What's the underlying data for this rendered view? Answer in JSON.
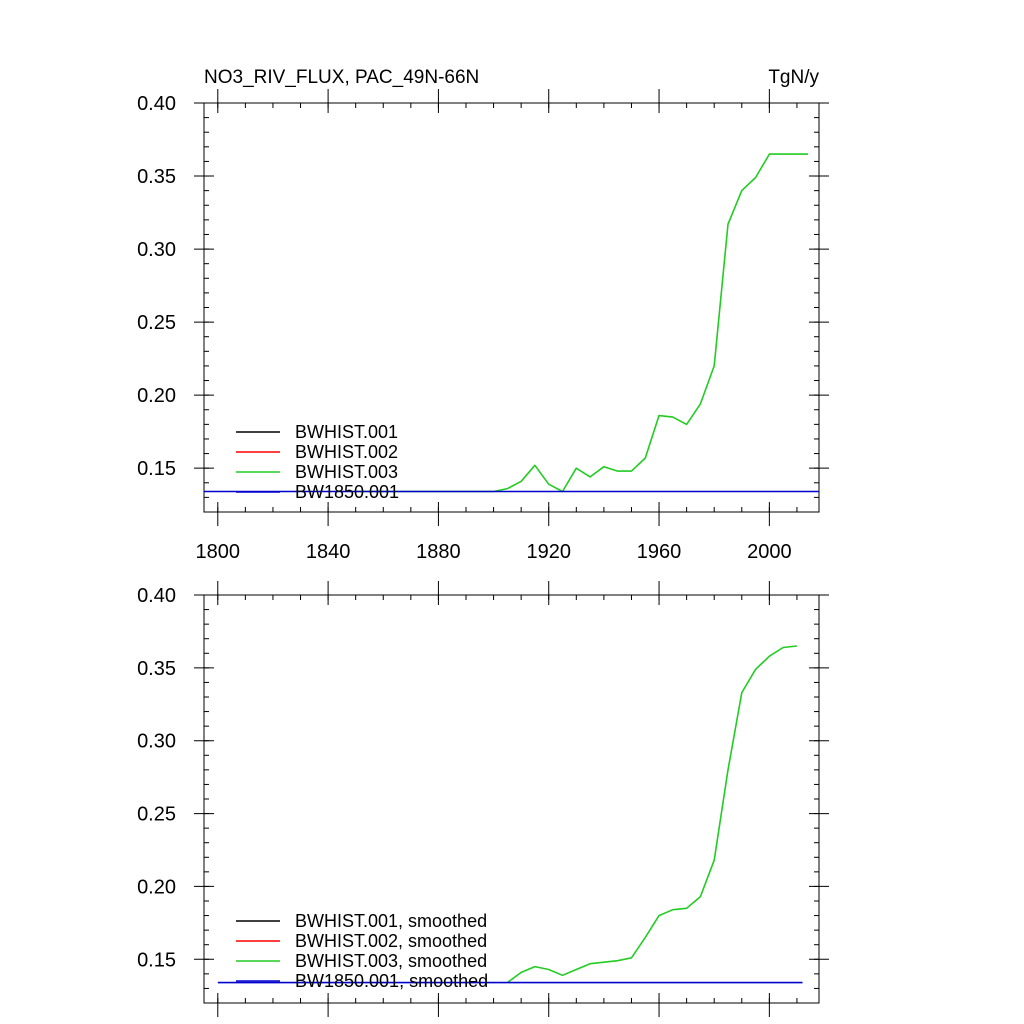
{
  "figure": {
    "title_left": "NO3_RIV_FLUX, PAC_49N-66N",
    "title_right": "TgN/y"
  },
  "chart_data": [
    {
      "type": "line",
      "xlim": [
        1795,
        2018
      ],
      "ylim": [
        0.12,
        0.4
      ],
      "xticks": [
        1800,
        1840,
        1880,
        1920,
        1960,
        2000
      ],
      "xtick_labels": [
        "1800",
        "1840",
        "1880",
        "1920",
        "1960",
        "2000"
      ],
      "yticks": [
        0.15,
        0.2,
        0.25,
        0.3,
        0.35,
        0.4
      ],
      "ytick_labels": [
        "0.15",
        "0.20",
        "0.25",
        "0.30",
        "0.35",
        "0.40"
      ],
      "grid": false,
      "legend_position": "bottom-left",
      "series": [
        {
          "name": "BWHIST.001",
          "color": "#000000",
          "x": [],
          "y": []
        },
        {
          "name": "BWHIST.002",
          "color": "#ff0000",
          "x": [],
          "y": []
        },
        {
          "name": "BWHIST.003",
          "color": "#22cc22",
          "x": [
            1850,
            1900,
            1905,
            1910,
            1915,
            1920,
            1925,
            1930,
            1935,
            1940,
            1945,
            1950,
            1955,
            1960,
            1965,
            1970,
            1975,
            1980,
            1985,
            1990,
            1995,
            2000,
            2005,
            2010,
            2014
          ],
          "y": [
            0.134,
            0.134,
            0.136,
            0.141,
            0.152,
            0.139,
            0.134,
            0.15,
            0.144,
            0.151,
            0.148,
            0.148,
            0.157,
            0.186,
            0.185,
            0.18,
            0.194,
            0.22,
            0.317,
            0.34,
            0.349,
            0.365,
            0.365,
            0.365,
            0.365
          ]
        },
        {
          "name": "BW1850.001",
          "color": "#0000cc",
          "x": [
            1795,
            2018
          ],
          "y": [
            0.134,
            0.134
          ]
        }
      ]
    },
    {
      "type": "line",
      "xlim": [
        1795,
        2018
      ],
      "ylim": [
        0.12,
        0.4
      ],
      "xticks": [
        1800,
        1840,
        1880,
        1920,
        1960,
        2000
      ],
      "xtick_labels": [],
      "yticks": [
        0.15,
        0.2,
        0.25,
        0.3,
        0.35,
        0.4
      ],
      "ytick_labels": [
        "0.15",
        "0.20",
        "0.25",
        "0.30",
        "0.35",
        "0.40"
      ],
      "grid": false,
      "legend_position": "bottom-left",
      "series": [
        {
          "name": "BWHIST.001, smoothed",
          "color": "#000000",
          "x": [],
          "y": []
        },
        {
          "name": "BWHIST.002, smoothed",
          "color": "#ff0000",
          "x": [],
          "y": []
        },
        {
          "name": "BWHIST.003, smoothed",
          "color": "#22cc22",
          "x": [
            1905,
            1910,
            1915,
            1920,
            1925,
            1930,
            1935,
            1940,
            1945,
            1950,
            1955,
            1960,
            1965,
            1970,
            1975,
            1980,
            1985,
            1990,
            1995,
            2000,
            2005,
            2010
          ],
          "y": [
            0.134,
            0.141,
            0.145,
            0.143,
            0.139,
            0.143,
            0.147,
            0.148,
            0.149,
            0.151,
            0.165,
            0.18,
            0.184,
            0.185,
            0.193,
            0.218,
            0.28,
            0.333,
            0.349,
            0.358,
            0.364,
            0.365
          ]
        },
        {
          "name": "BW1850.001, smoothed",
          "color": "#0000cc",
          "x": [
            1800,
            2012
          ],
          "y": [
            0.134,
            0.134
          ]
        }
      ]
    }
  ]
}
